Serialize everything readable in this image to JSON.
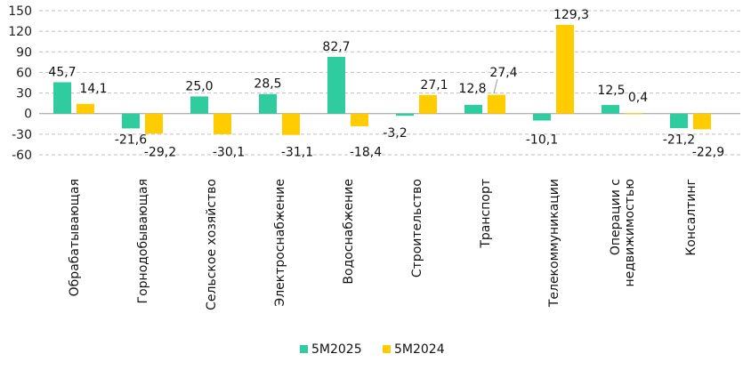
{
  "chart_data": {
    "type": "bar",
    "title": "",
    "xlabel": "",
    "ylabel": "",
    "ylim": [
      -60,
      150
    ],
    "yticks": [
      -60,
      -30,
      0,
      30,
      60,
      90,
      120,
      150
    ],
    "ytick_labels": [
      "-60",
      "-30",
      "0",
      "30",
      "60",
      "90",
      "120",
      "150"
    ],
    "grid": true,
    "legend_position": "bottom",
    "categories": [
      "Обрабатывающая",
      "Горнодобывающая",
      "Сельское хозяйство",
      "Электроснабжение",
      "Водоснабжение",
      "Строительство",
      "Транспорт",
      "Телекоммуникации",
      "Операции с недвижимостью",
      "Консалтинг"
    ],
    "category_lines": [
      [
        "Обрабатывающая"
      ],
      [
        "Горнодобывающая"
      ],
      [
        "Сельское хозяйство"
      ],
      [
        "Электроснабжение"
      ],
      [
        "Водоснабжение"
      ],
      [
        "Строительство"
      ],
      [
        "Транспорт"
      ],
      [
        "Телекоммуникации"
      ],
      [
        "Операции с",
        "недвижимостью"
      ],
      [
        "Консалтинг"
      ]
    ],
    "series": [
      {
        "name": "5М2025",
        "color": "#2ecc9f",
        "values": [
          45.7,
          -21.6,
          25.0,
          28.5,
          82.7,
          -3.2,
          12.8,
          -10.1,
          12.5,
          -21.2
        ],
        "labels": [
          "45,7",
          "-21,6",
          "25,0",
          "28,5",
          "82,7",
          "-3,2",
          "12,8",
          "-10,1",
          "12,5",
          "-21,2"
        ]
      },
      {
        "name": "5М2024",
        "color": "#ffcc00",
        "values": [
          14.1,
          -29.2,
          -30.1,
          -31.1,
          -18.4,
          27.1,
          27.4,
          129.3,
          0.4,
          -22.9
        ],
        "labels": [
          "14,1",
          "-29,2",
          "-30,1",
          "-31,1",
          "-18,4",
          "27,1",
          "27,4",
          "129,3",
          "0,4",
          "-22,9"
        ]
      }
    ]
  }
}
